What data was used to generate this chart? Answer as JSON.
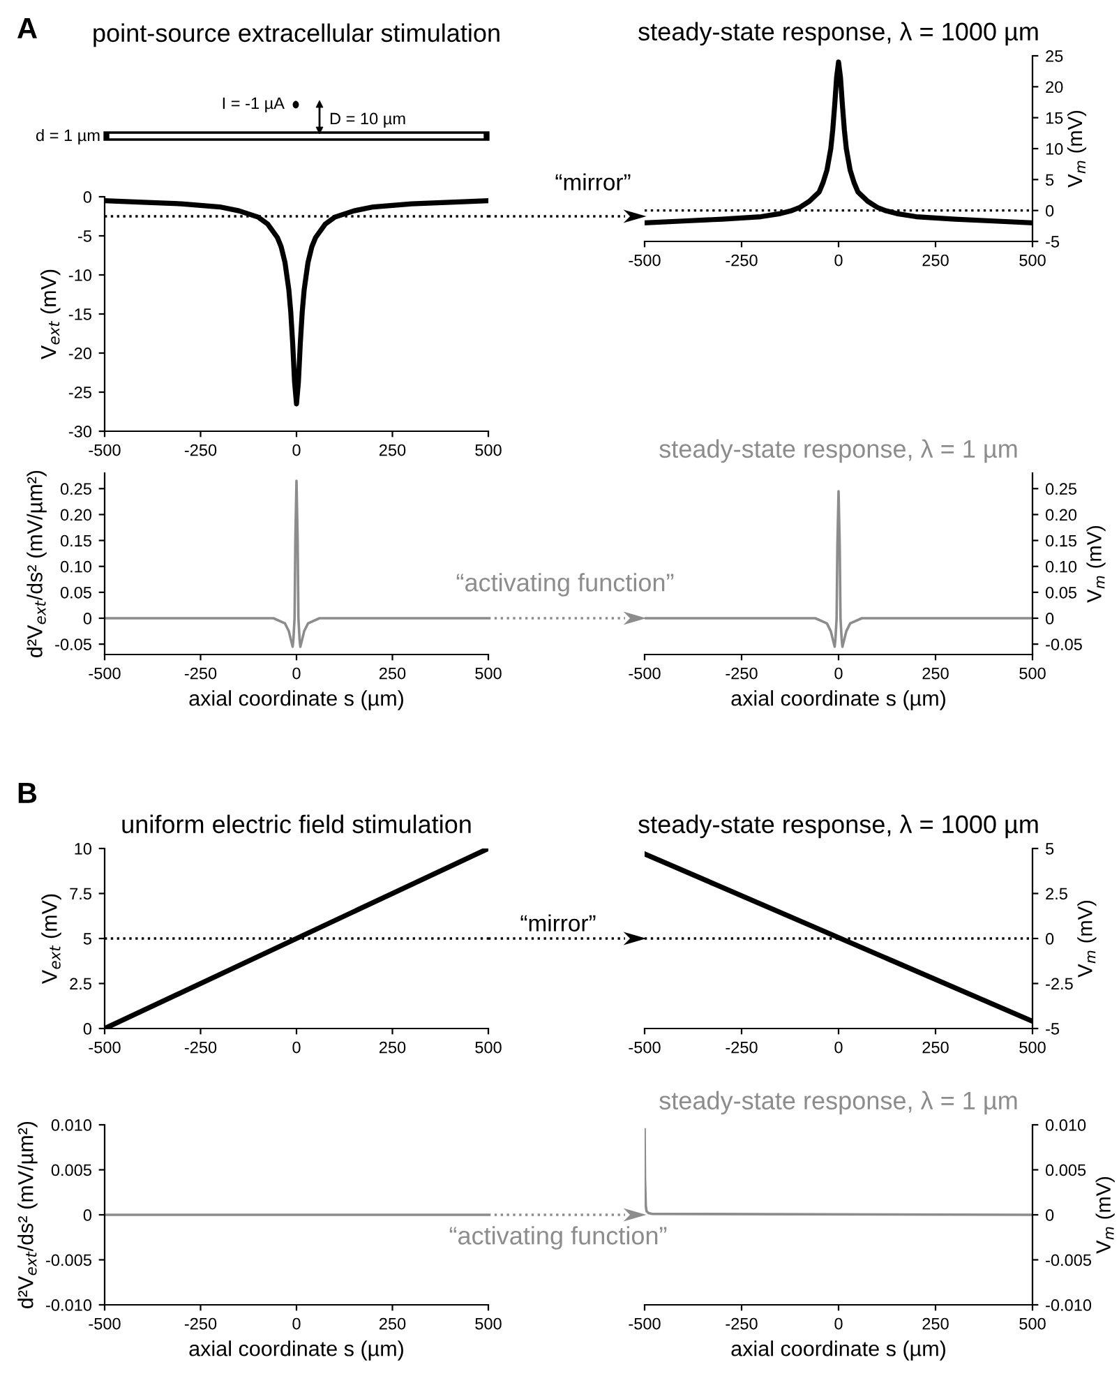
{
  "chart_data": [
    {
      "type": "line",
      "title": "point-source extracellular stimulation",
      "ylabel": "V$_{ext}$ (mV)",
      "xlim": [
        -500,
        500
      ],
      "xticks": [
        -500,
        -250,
        0,
        250,
        500
      ],
      "ylim": [
        -30,
        0
      ],
      "yticks": [
        -30,
        -25,
        -20,
        -15,
        -10,
        -5,
        0
      ],
      "annotations": [
        "A",
        "I = -1 µA",
        "D = 10 µm",
        "d = 1 µm",
        "“mirror”"
      ],
      "ref_lines": [
        {
          "axis": "y",
          "value": -2.5,
          "color": "#000000",
          "line_style": "dotted"
        }
      ],
      "series": [
        {
          "color": "#000000",
          "x": [
            -500,
            -400,
            -300,
            -200,
            -150,
            -100,
            -75,
            -50,
            -40,
            -30,
            -20,
            -15,
            -10,
            -5,
            0,
            5,
            10,
            15,
            20,
            30,
            40,
            50,
            75,
            100,
            150,
            200,
            300,
            400,
            500
          ],
          "values": [
            -0.5,
            -0.7,
            -0.9,
            -1.3,
            -1.8,
            -2.6,
            -3.5,
            -5.2,
            -6.4,
            -8.4,
            -11.9,
            -14.7,
            -18.7,
            -23.7,
            -26.5,
            -23.7,
            -18.7,
            -14.7,
            -11.9,
            -8.4,
            -6.4,
            -5.2,
            -3.5,
            -2.6,
            -1.8,
            -1.3,
            -0.9,
            -0.7,
            -0.5
          ]
        }
      ]
    },
    {
      "type": "line",
      "title": "steady-state response, λ = 1000 µm",
      "y2label": "V$_{m}$ (mV)",
      "xlim": [
        -500,
        500
      ],
      "xticks": [
        -500,
        -250,
        0,
        250,
        500
      ],
      "y2lim": [
        -5,
        25
      ],
      "y2ticks": [
        -5,
        0,
        5,
        10,
        15,
        20,
        25
      ],
      "ref_lines": [
        {
          "axis": "y2",
          "value": 0,
          "color": "#000000",
          "line_style": "dotted"
        }
      ],
      "series": [
        {
          "color": "#000000",
          "axis": "y2",
          "x": [
            -500,
            -400,
            -300,
            -200,
            -150,
            -120,
            -100,
            -75,
            -50,
            -40,
            -30,
            -20,
            -15,
            -10,
            -5,
            0,
            5,
            10,
            15,
            20,
            30,
            40,
            50,
            75,
            100,
            120,
            150,
            200,
            300,
            400,
            500
          ],
          "values": [
            -2,
            -1.7,
            -1.4,
            -1,
            -0.5,
            0,
            0.5,
            1.5,
            3,
            4.5,
            6.5,
            10,
            13,
            17,
            21.5,
            24,
            21.5,
            17,
            13,
            10,
            6.5,
            4.5,
            3,
            1.5,
            0.5,
            0,
            -0.5,
            -1,
            -1.4,
            -1.7,
            -2
          ]
        }
      ]
    },
    {
      "type": "line",
      "ylabel": "d²V$_{ext}$/ds² (mV/µm²)",
      "xlabel": "axial coordinate s (µm)",
      "xlim": [
        -500,
        500
      ],
      "xticks": [
        -500,
        -250,
        0,
        250,
        500
      ],
      "ylim": [
        -0.07,
        0.28
      ],
      "yticks": [
        -0.05,
        0,
        0.05,
        {
          "value": 0.1,
          "label": "0.10"
        },
        0.15,
        {
          "value": 0.2,
          "label": "0.20"
        },
        0.25
      ],
      "annotations": [
        "“activating function”"
      ],
      "series": [
        {
          "color": "#8c8c8c",
          "x": [
            -500,
            -100,
            -60,
            -30,
            -20,
            -15,
            -10,
            -8,
            -5,
            -3,
            0,
            3,
            5,
            8,
            10,
            15,
            20,
            30,
            60,
            100,
            500
          ],
          "values": [
            0,
            0,
            0,
            -0.01,
            -0.025,
            -0.04,
            -0.055,
            -0.04,
            0,
            0.15,
            0.265,
            0.15,
            0,
            -0.04,
            -0.055,
            -0.04,
            -0.025,
            -0.01,
            0,
            0,
            0
          ]
        }
      ]
    },
    {
      "type": "line",
      "title": "steady-state response, λ = 1 µm",
      "y2label": "V$_{m}$ (mV)",
      "xlabel": "axial coordinate s (µm)",
      "xlim": [
        -500,
        500
      ],
      "xticks": [
        -500,
        -250,
        0,
        250,
        500
      ],
      "y2lim": [
        -0.07,
        0.28
      ],
      "y2ticks": [
        -0.05,
        0,
        0.05,
        {
          "value": 0.1,
          "label": "0.10"
        },
        0.15,
        {
          "value": 0.2,
          "label": "0.20"
        },
        0.25
      ],
      "series": [
        {
          "color": "#8c8c8c",
          "axis": "y2",
          "x": [
            -500,
            -100,
            -60,
            -30,
            -20,
            -15,
            -10,
            -8,
            -5,
            -3,
            0,
            3,
            5,
            8,
            10,
            15,
            20,
            30,
            60,
            100,
            500
          ],
          "values": [
            0,
            0,
            0,
            -0.01,
            -0.025,
            -0.04,
            -0.055,
            -0.04,
            0,
            0.14,
            0.245,
            0.14,
            0,
            -0.04,
            -0.055,
            -0.04,
            -0.025,
            -0.01,
            0,
            0,
            0
          ]
        }
      ]
    },
    {
      "type": "line",
      "title": "uniform electric field stimulation",
      "ylabel": "V$_{ext}$ (mV)",
      "xlim": [
        -500,
        500
      ],
      "xticks": [
        -500,
        -250,
        0,
        250,
        500
      ],
      "ylim": [
        0,
        10
      ],
      "yticks": [
        0,
        2.5,
        5,
        7.5,
        10
      ],
      "annotations": [
        "B",
        "“mirror”"
      ],
      "ref_lines": [
        {
          "axis": "y",
          "value": 5,
          "color": "#000000",
          "line_style": "dotted"
        }
      ],
      "series": [
        {
          "color": "#000000",
          "x": [
            -500,
            500
          ],
          "values": [
            0,
            10
          ]
        }
      ]
    },
    {
      "type": "line",
      "title": "steady-state response, λ = 1000 µm",
      "y2label": "V$_{m}$ (mV)",
      "xlim": [
        -500,
        500
      ],
      "xticks": [
        -500,
        -250,
        0,
        250,
        500
      ],
      "y2lim": [
        -5,
        5
      ],
      "y2ticks": [
        -5,
        -2.5,
        0,
        2.5,
        5
      ],
      "ref_lines": [
        {
          "axis": "y2",
          "value": 0,
          "color": "#000000",
          "line_style": "dotted"
        }
      ],
      "series": [
        {
          "color": "#000000",
          "axis": "y2",
          "x": [
            -500,
            500
          ],
          "values": [
            4.7,
            -4.6
          ]
        }
      ]
    },
    {
      "type": "line",
      "ylabel": "d²V$_{ext}$/ds² (mV/µm²)",
      "xlabel": "axial coordinate s (µm)",
      "xlim": [
        -500,
        500
      ],
      "xticks": [
        -500,
        -250,
        0,
        250,
        500
      ],
      "ylim": [
        -0.01,
        0.01
      ],
      "yticks": [
        {
          "value": -0.01,
          "label": "-0.010"
        },
        -0.005,
        0,
        0.005,
        {
          "value": 0.01,
          "label": "0.010"
        }
      ],
      "annotations": [
        "“activating function”"
      ],
      "series": [
        {
          "color": "#8c8c8c",
          "x": [
            -500,
            500
          ],
          "values": [
            0,
            0
          ]
        }
      ]
    },
    {
      "type": "line",
      "title": "steady-state response, λ = 1 µm",
      "y2label": "V$_{m}$ (mV)",
      "xlabel": "axial coordinate s (µm)",
      "xlim": [
        -500,
        500
      ],
      "xticks": [
        -500,
        -250,
        0,
        250,
        500
      ],
      "y2lim": [
        -0.01,
        0.01
      ],
      "y2ticks": [
        {
          "value": -0.01,
          "label": "-0.010"
        },
        -0.005,
        0,
        0.005,
        {
          "value": 0.01,
          "label": "0.010"
        }
      ],
      "series": [
        {
          "color": "#8c8c8c",
          "axis": "y2",
          "x": [
            -500,
            -499,
            -497,
            -495,
            -490,
            -480,
            500
          ],
          "values": [
            0.0095,
            0.004,
            0.001,
            0.0004,
            0.0002,
            0.0001,
            0
          ]
        }
      ]
    }
  ]
}
